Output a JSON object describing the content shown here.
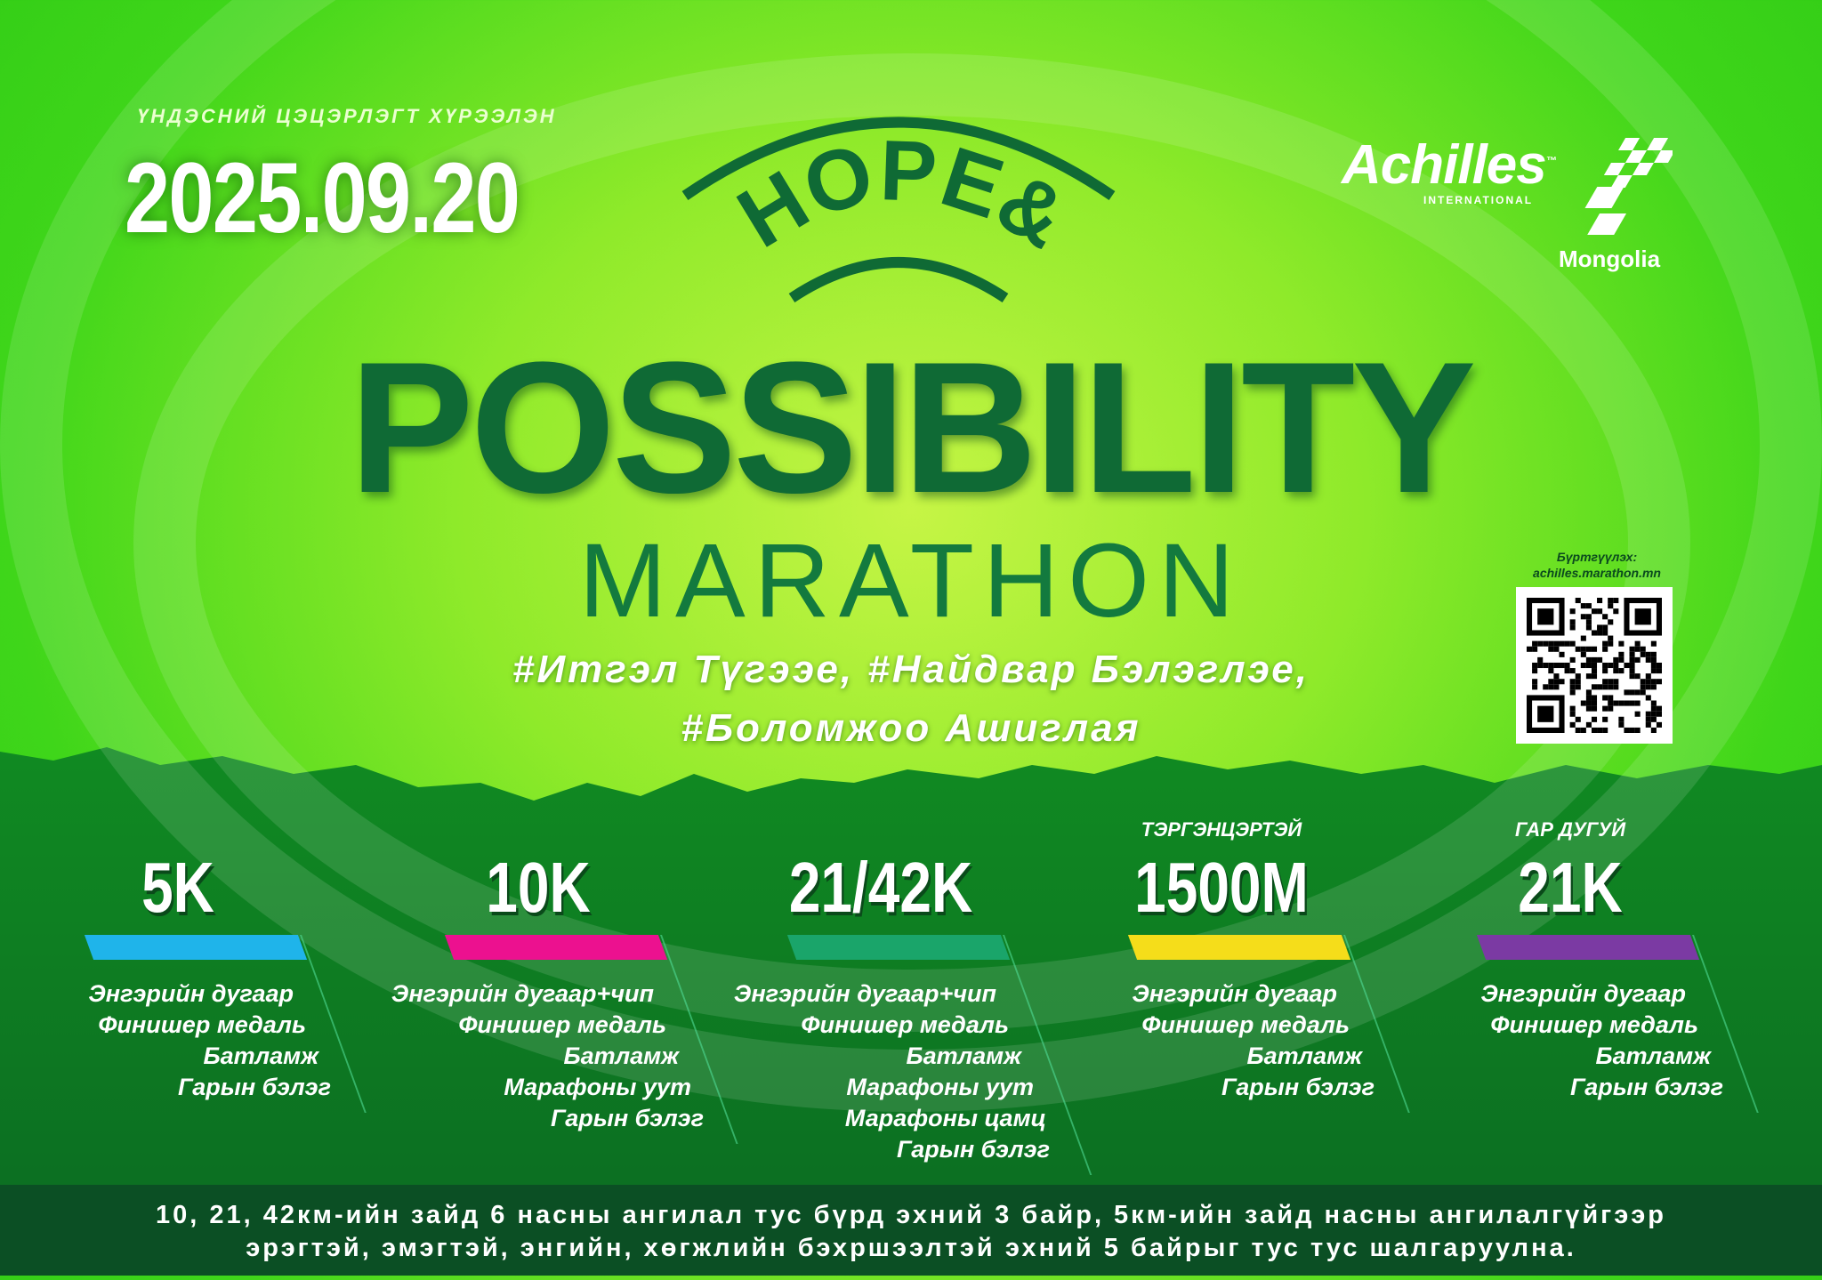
{
  "header": {
    "venue": "ҮНДЭСНИЙ ЦЭЦЭРЛЭГТ ХҮРЭЭЛЭН",
    "date": "2025.09.20"
  },
  "title": {
    "hope": "HOPE&",
    "main": "POSSIBILITY",
    "sub": "MARATHON"
  },
  "hashtags": [
    "#Итгэл Түгээе, #Найдвар Бэлэглэе,",
    "#Боломжоо Ашиглая"
  ],
  "logo": {
    "name": "Achilles",
    "tm": "™",
    "intl": "INTERNATIONAL",
    "country": "Mongolia"
  },
  "registration": {
    "label": "Бүртгүүлэх:",
    "url": "achilles.marathon.mn",
    "icon": "qr-code-icon"
  },
  "colors": {
    "dark_green": "#0b4f24",
    "title_green": "#0f6a35",
    "bg_green": "#3fd61a"
  },
  "events": [
    {
      "sub": "",
      "name": "5K",
      "color": "#1fb4ea",
      "items": [
        "Энгэрийн дугаар",
        "Финишер медаль",
        "Батламж",
        "Гарын бэлэг"
      ]
    },
    {
      "sub": "",
      "name": "10K",
      "color": "#ec118f",
      "items": [
        "Энгэрийн дугаар+чип",
        "Финишер медаль",
        "Батламж",
        "Марафоны уут",
        "Гарын бэлэг"
      ]
    },
    {
      "sub": "",
      "name": "21/42K",
      "color": "#1aa56a",
      "items": [
        "Энгэрийн дугаар+чип",
        "Финишер медаль",
        "Батламж",
        "Марафоны уут",
        "Марафоны цамц",
        "Гарын бэлэг"
      ]
    },
    {
      "sub": "ТЭРГЭНЦЭРТЭЙ",
      "name": "1500M",
      "color": "#f5dd1a",
      "items": [
        "Энгэрийн дугаар",
        "Финишер медаль",
        "Батламж",
        "Гарын бэлэг"
      ]
    },
    {
      "sub": "ГАР ДУГУЙ",
      "name": "21K",
      "color": "#7b3aa3",
      "items": [
        "Энгэрийн дугаар",
        "Финишер медаль",
        "Батламж",
        "Гарын бэлэг"
      ]
    }
  ],
  "footer": [
    "10, 21, 42км-ийн зайд 6 насны ангилал тус бүрд эхний 3 байр, 5км-ийн зайд насны ангилалгүйгээр",
    "эрэгтэй, эмэгтэй, энгийн, хөгжлийн бэхршээлтэй эхний 5 байрыг тус тус шалгаруулна."
  ]
}
